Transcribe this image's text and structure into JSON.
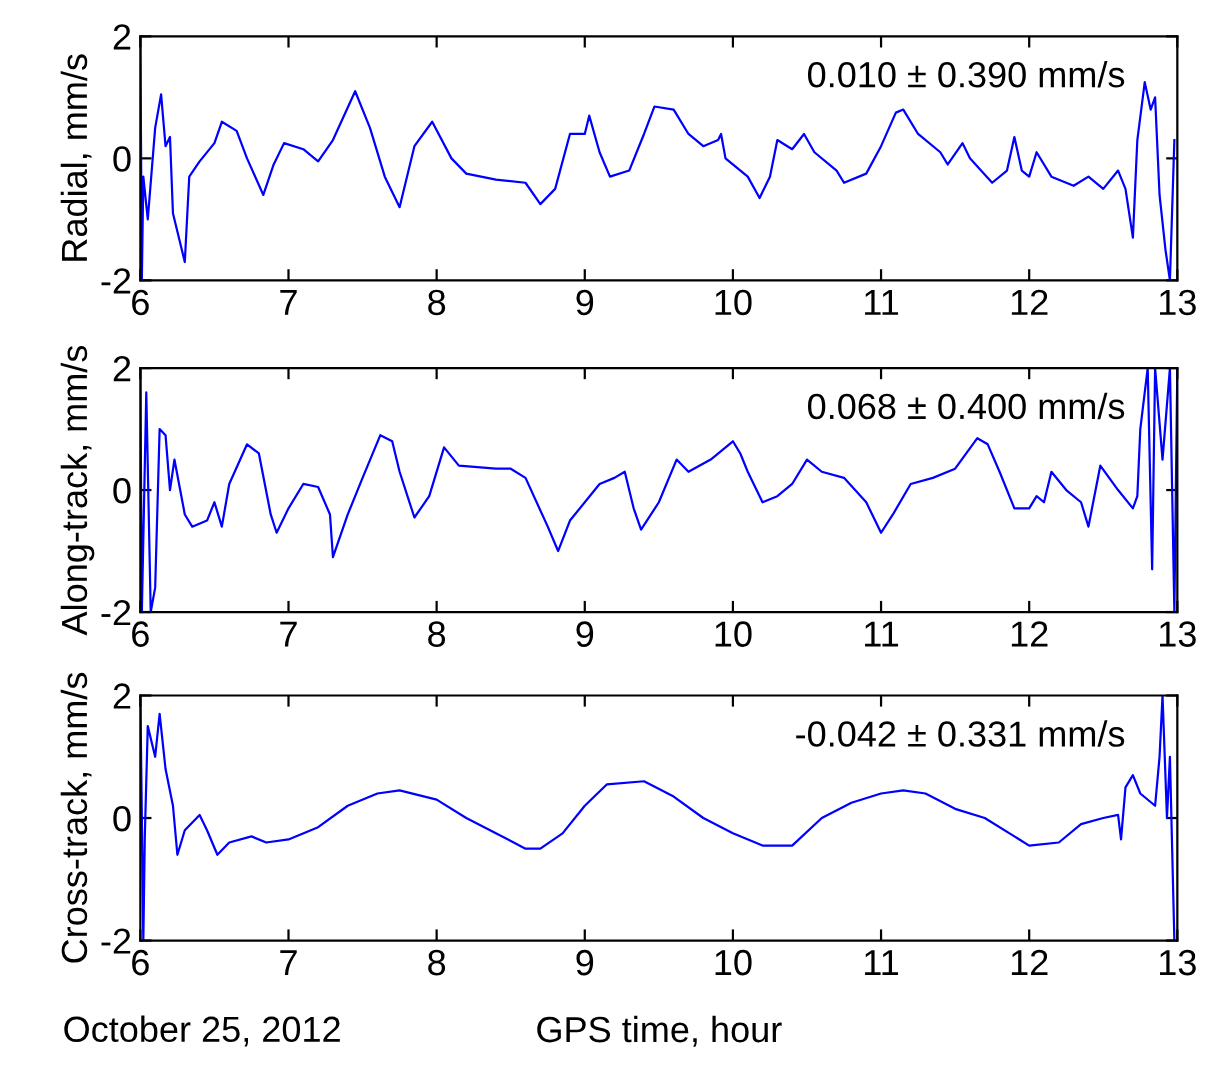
{
  "chart_data": [
    {
      "type": "line",
      "ylabel": "Radial, mm/s",
      "xlim": [
        6,
        13
      ],
      "xticks": [
        6,
        7,
        8,
        9,
        10,
        11,
        12,
        13
      ],
      "ylim": [
        -2,
        2
      ],
      "yticks": [
        -2,
        0,
        2
      ],
      "grid": false,
      "legend": false,
      "annotations": [
        "0.010 ± 0.390 mm/s"
      ],
      "series": [
        {
          "color": "#0000ff",
          "x": [
            6.0,
            6.01,
            6.02,
            6.05,
            6.1,
            6.14,
            6.17,
            6.2,
            6.22,
            6.25,
            6.3,
            6.33,
            6.4,
            6.5,
            6.55,
            6.65,
            6.72,
            6.83,
            6.9,
            6.97,
            7.1,
            7.2,
            7.3,
            7.45,
            7.55,
            7.65,
            7.75,
            7.85,
            7.97,
            8.1,
            8.2,
            8.4,
            8.6,
            8.7,
            8.8,
            8.9,
            9.0,
            9.03,
            9.1,
            9.17,
            9.3,
            9.4,
            9.47,
            9.6,
            9.7,
            9.8,
            9.9,
            9.92,
            9.95,
            10.1,
            10.18,
            10.25,
            10.3,
            10.4,
            10.48,
            10.55,
            10.7,
            10.75,
            10.9,
            11.0,
            11.1,
            11.15,
            11.25,
            11.4,
            11.45,
            11.55,
            11.6,
            11.75,
            11.85,
            11.9,
            11.95,
            12.0,
            12.05,
            12.15,
            12.3,
            12.4,
            12.5,
            12.6,
            12.65,
            12.7,
            12.73,
            12.78,
            12.82,
            12.85,
            12.88,
            12.92,
            12.95,
            12.98
          ],
          "values": [
            2.0,
            -2.0,
            -0.3,
            -1.0,
            0.5,
            1.05,
            0.2,
            0.35,
            -0.9,
            -1.2,
            -1.7,
            -0.3,
            -0.05,
            0.25,
            0.6,
            0.45,
            0.0,
            -0.6,
            -0.1,
            0.25,
            0.15,
            -0.05,
            0.3,
            1.1,
            0.5,
            -0.3,
            -0.8,
            0.2,
            0.6,
            0.0,
            -0.25,
            -0.35,
            -0.4,
            -0.75,
            -0.5,
            0.4,
            0.4,
            0.7,
            0.1,
            -0.3,
            -0.2,
            0.4,
            0.85,
            0.8,
            0.4,
            0.2,
            0.3,
            0.4,
            0.0,
            -0.3,
            -0.65,
            -0.3,
            0.3,
            0.15,
            0.4,
            0.1,
            -0.2,
            -0.4,
            -0.25,
            0.2,
            0.75,
            0.8,
            0.4,
            0.1,
            -0.1,
            0.25,
            0.0,
            -0.4,
            -0.2,
            0.35,
            -0.2,
            -0.3,
            0.1,
            -0.3,
            -0.45,
            -0.3,
            -0.5,
            -0.2,
            -0.5,
            -1.3,
            0.3,
            1.25,
            0.8,
            1.0,
            -0.6,
            -1.5,
            -2.0,
            0.3
          ]
        }
      ]
    },
    {
      "type": "line",
      "ylabel": "Along-track, mm/s",
      "xlim": [
        6,
        13
      ],
      "xticks": [
        6,
        7,
        8,
        9,
        10,
        11,
        12,
        13
      ],
      "ylim": [
        -2,
        2
      ],
      "yticks": [
        -2,
        0,
        2
      ],
      "grid": false,
      "legend": false,
      "annotations": [
        "0.068 ± 0.400 mm/s"
      ],
      "series": [
        {
          "color": "#0000ff",
          "x": [
            6.0,
            6.01,
            6.04,
            6.07,
            6.1,
            6.13,
            6.17,
            6.2,
            6.23,
            6.3,
            6.35,
            6.45,
            6.5,
            6.55,
            6.6,
            6.72,
            6.8,
            6.88,
            6.92,
            7.0,
            7.1,
            7.2,
            7.28,
            7.3,
            7.4,
            7.5,
            7.62,
            7.7,
            7.75,
            7.85,
            7.95,
            8.05,
            8.15,
            8.4,
            8.5,
            8.6,
            8.75,
            8.82,
            8.9,
            9.1,
            9.2,
            9.27,
            9.33,
            9.38,
            9.5,
            9.62,
            9.7,
            9.85,
            10.0,
            10.05,
            10.1,
            10.2,
            10.3,
            10.4,
            10.5,
            10.6,
            10.75,
            10.9,
            11.0,
            11.08,
            11.2,
            11.35,
            11.5,
            11.65,
            11.72,
            11.8,
            11.9,
            12.0,
            12.05,
            12.1,
            12.15,
            12.25,
            12.35,
            12.4,
            12.48,
            12.6,
            12.7,
            12.73,
            12.75,
            12.8,
            12.83,
            12.85,
            12.9,
            12.95,
            12.98,
            13.0
          ],
          "values": [
            2.0,
            -2.0,
            1.6,
            -2.0,
            -1.6,
            1.0,
            0.9,
            0.0,
            0.5,
            -0.4,
            -0.6,
            -0.5,
            -0.2,
            -0.6,
            0.1,
            0.75,
            0.6,
            -0.4,
            -0.7,
            -0.3,
            0.1,
            0.05,
            -0.4,
            -1.1,
            -0.4,
            0.2,
            0.9,
            0.8,
            0.3,
            -0.45,
            -0.1,
            0.7,
            0.4,
            0.35,
            0.35,
            0.2,
            -0.6,
            -1.0,
            -0.5,
            0.1,
            0.2,
            0.3,
            -0.3,
            -0.65,
            -0.2,
            0.5,
            0.3,
            0.5,
            0.8,
            0.6,
            0.3,
            -0.2,
            -0.1,
            0.1,
            0.5,
            0.3,
            0.2,
            -0.2,
            -0.7,
            -0.4,
            0.1,
            0.2,
            0.35,
            0.85,
            0.75,
            0.3,
            -0.3,
            -0.3,
            -0.1,
            -0.2,
            0.3,
            0.0,
            -0.2,
            -0.6,
            0.4,
            0.0,
            -0.3,
            -0.1,
            1.0,
            2.0,
            -1.3,
            2.0,
            0.5,
            2.0,
            -2.0,
            2.0
          ]
        }
      ]
    },
    {
      "type": "line",
      "ylabel": "Cross-track, mm/s",
      "xlabel": "GPS time, hour",
      "xlim": [
        6,
        13
      ],
      "xticks": [
        6,
        7,
        8,
        9,
        10,
        11,
        12,
        13
      ],
      "ylim": [
        -2,
        2
      ],
      "yticks": [
        -2,
        0,
        2
      ],
      "grid": false,
      "legend": false,
      "annotations": [
        "-0.042 ± 0.331 mm/s",
        "October 25, 2012"
      ],
      "series": [
        {
          "color": "#0000ff",
          "x": [
            6.0,
            6.02,
            6.03,
            6.05,
            6.1,
            6.13,
            6.17,
            6.22,
            6.25,
            6.3,
            6.4,
            6.45,
            6.52,
            6.6,
            6.75,
            6.85,
            7.0,
            7.2,
            7.4,
            7.6,
            7.75,
            8.0,
            8.2,
            8.4,
            8.6,
            8.7,
            8.85,
            9.0,
            9.15,
            9.4,
            9.6,
            9.8,
            10.0,
            10.2,
            10.4,
            10.6,
            10.8,
            11.0,
            11.15,
            11.3,
            11.5,
            11.7,
            11.9,
            12.0,
            12.2,
            12.35,
            12.5,
            12.6,
            12.62,
            12.65,
            12.7,
            12.75,
            12.85,
            12.88,
            12.9,
            12.93,
            12.95,
            12.98
          ],
          "values": [
            2.0,
            -2.0,
            -0.3,
            1.5,
            1.0,
            1.7,
            0.8,
            0.2,
            -0.6,
            -0.2,
            0.05,
            -0.2,
            -0.6,
            -0.4,
            -0.3,
            -0.4,
            -0.35,
            -0.15,
            0.2,
            0.4,
            0.45,
            0.3,
            0.0,
            -0.25,
            -0.5,
            -0.5,
            -0.25,
            0.2,
            0.55,
            0.6,
            0.35,
            0.0,
            -0.25,
            -0.45,
            -0.45,
            0.0,
            0.25,
            0.4,
            0.45,
            0.4,
            0.15,
            0.0,
            -0.3,
            -0.45,
            -0.4,
            -0.1,
            0.0,
            0.05,
            -0.35,
            0.5,
            0.7,
            0.4,
            0.2,
            1.0,
            2.0,
            0.0,
            1.0,
            -2.0
          ]
        }
      ]
    }
  ]
}
